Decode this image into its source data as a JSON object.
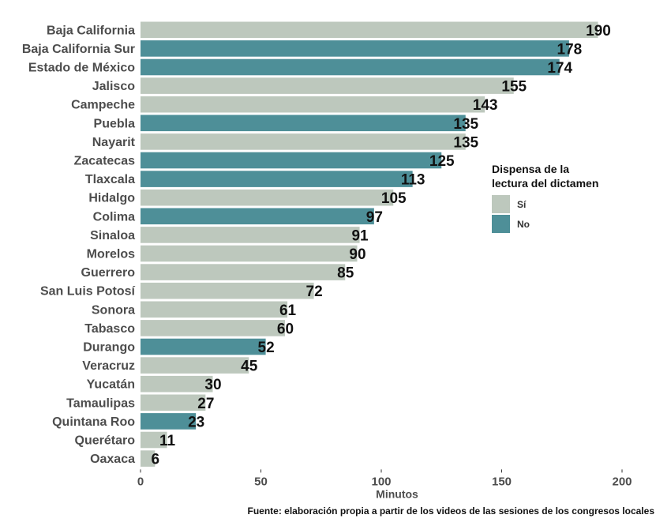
{
  "chart_data": {
    "type": "bar",
    "orientation": "horizontal",
    "categories": [
      "Baja California",
      "Baja California Sur",
      "Estado de México",
      "Jalisco",
      "Campeche",
      "Puebla",
      "Nayarit",
      "Zacatecas",
      "Tlaxcala",
      "Hidalgo",
      "Colima",
      "Sinaloa",
      "Morelos",
      "Guerrero",
      "San Luis Potosí",
      "Sonora",
      "Tabasco",
      "Durango",
      "Veracruz",
      "Yucatán",
      "Tamaulipas",
      "Quintana Roo",
      "Querétaro",
      "Oaxaca"
    ],
    "values": [
      190,
      178,
      174,
      155,
      143,
      135,
      135,
      125,
      113,
      105,
      97,
      91,
      90,
      85,
      72,
      61,
      60,
      52,
      45,
      30,
      27,
      23,
      11,
      6
    ],
    "group": [
      "Sí",
      "No",
      "No",
      "Sí",
      "Sí",
      "No",
      "Sí",
      "No",
      "No",
      "Sí",
      "No",
      "Sí",
      "Sí",
      "Sí",
      "Sí",
      "Sí",
      "Sí",
      "No",
      "Sí",
      "Sí",
      "Sí",
      "No",
      "Sí",
      "Sí"
    ],
    "title": "",
    "xlabel": "Minutos",
    "ylabel": "",
    "xlim": [
      0,
      200
    ],
    "xticks": [
      0,
      50,
      100,
      150,
      200
    ],
    "grid": false,
    "legend": {
      "title_line1": "Dispensa de la",
      "title_line2": "lectura del dictamen",
      "placement": "right",
      "entries": [
        {
          "label": "Sí",
          "color": "#bdc8bd"
        },
        {
          "label": "No",
          "color": "#4e8f98"
        }
      ]
    },
    "colors": {
      "Sí": "#bdc8bd",
      "No": "#4e8f98"
    },
    "caption": "Fuente: elaboración propia a partir de los videos de las sesiones de los congresos locales"
  }
}
